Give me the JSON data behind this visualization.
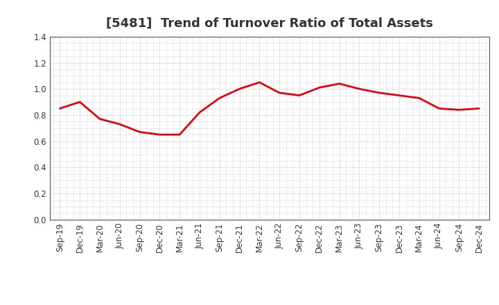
{
  "title": "[5481]  Trend of Turnover Ratio of Total Assets",
  "x_labels": [
    "Sep-19",
    "Dec-19",
    "Mar-20",
    "Jun-20",
    "Sep-20",
    "Dec-20",
    "Mar-21",
    "Jun-21",
    "Sep-21",
    "Dec-21",
    "Mar-22",
    "Jun-22",
    "Sep-22",
    "Dec-22",
    "Mar-23",
    "Jun-23",
    "Sep-23",
    "Dec-23",
    "Mar-24",
    "Jun-24",
    "Sep-24",
    "Dec-24"
  ],
  "y_values": [
    0.85,
    0.9,
    0.77,
    0.73,
    0.67,
    0.65,
    0.65,
    0.82,
    0.93,
    1.0,
    1.05,
    0.97,
    0.95,
    1.01,
    1.04,
    1.0,
    0.97,
    0.95,
    0.93,
    0.85,
    0.84,
    0.85
  ],
  "line_color": "#e8000d",
  "line_width": 2.0,
  "ylim": [
    0.0,
    1.4
  ],
  "yticks": [
    0.0,
    0.2,
    0.4,
    0.6,
    0.8,
    1.0,
    1.2,
    1.4
  ],
  "grid_color": "#bbbbbb",
  "bg_color": "#ffffff",
  "title_fontsize": 13,
  "tick_fontsize": 8.5,
  "title_color": "#333333"
}
